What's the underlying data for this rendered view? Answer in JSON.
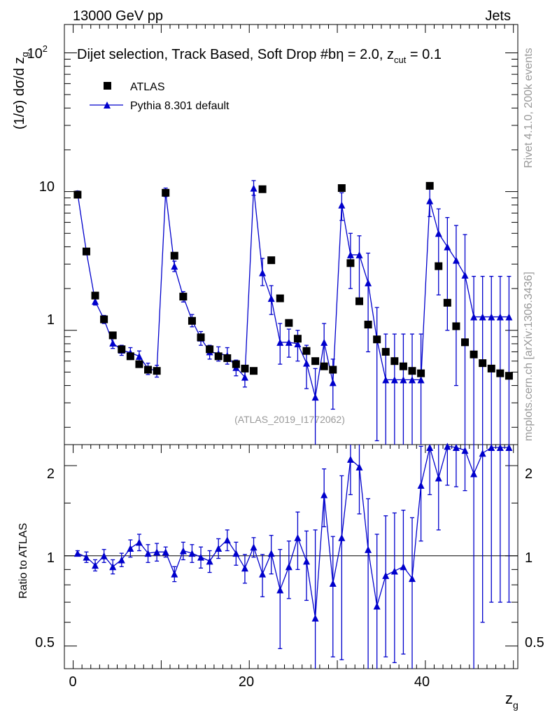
{
  "header": {
    "energy_label": "13000 GeV pp",
    "category_label": "Jets",
    "rivet_label": "Rivet 4.1.0,  200k events",
    "mcplots_label": "mcplots.cern.ch [arXiv:1306.3436]",
    "analysis_id": "(ATLAS_2019_I1772062)"
  },
  "main_plot": {
    "title_part1": "Dijet selection, Track Based, Soft Drop #b",
    "title_part2": "η = 2.0, z",
    "title_sub": "cut",
    "title_part3": " = 0.1",
    "ylabel_part1": "(1/σ) dσ/d z",
    "ylabel_sub": "g",
    "y_tick_labels": [
      "1",
      "10",
      "10"
    ],
    "y_tick_exponent": "2"
  },
  "ratio_plot": {
    "ylabel": "Ratio to ATLAS",
    "y_tick_labels": [
      "0.5",
      "1",
      "2"
    ]
  },
  "x_axis": {
    "label_main": "z",
    "label_sub": "g",
    "tick_labels": [
      "0",
      "20",
      "40"
    ]
  },
  "legend": {
    "items": [
      {
        "label": "ATLAS",
        "marker": "square",
        "color": "#000000"
      },
      {
        "label": "Pythia 8.301 default",
        "marker": "triangle",
        "color": "#0000cc"
      }
    ]
  },
  "colors": {
    "data": "#000000",
    "mc": "#0000cc"
  },
  "chart_data": {
    "type": "scatter",
    "x_range": [
      -1,
      50.5
    ],
    "main_ylim": [
      0.15,
      160
    ],
    "main_yscale": "log",
    "ratio_ylim": [
      0.42,
      2.35
    ],
    "ratio_yscale": "log",
    "x": [
      0.5,
      1.5,
      2.5,
      3.5,
      4.5,
      5.5,
      6.5,
      7.5,
      8.5,
      9.5,
      10.5,
      11.5,
      12.5,
      13.5,
      14.5,
      15.5,
      16.5,
      17.5,
      18.5,
      19.5,
      20.5,
      21.5,
      22.5,
      23.5,
      24.5,
      25.5,
      26.5,
      27.5,
      28.5,
      29.5,
      30.5,
      31.5,
      32.5,
      33.5,
      34.5,
      35.5,
      36.5,
      37.5,
      38.5,
      39.5,
      40.5,
      41.5,
      42.5,
      43.5,
      44.5,
      45.5,
      46.5,
      47.5,
      48.5,
      49.5
    ],
    "series": [
      {
        "name": "ATLAS",
        "values": [
          9.5,
          3.7,
          1.78,
          1.2,
          0.92,
          0.73,
          0.65,
          0.57,
          0.52,
          0.51,
          9.8,
          3.45,
          1.75,
          1.17,
          0.89,
          0.73,
          0.65,
          0.63,
          0.57,
          0.53,
          0.51,
          10.4,
          3.2,
          1.7,
          1.13,
          0.87,
          0.71,
          0.6,
          0.55,
          0.52,
          10.6,
          3.05,
          1.62,
          1.1,
          0.86,
          0.7,
          0.6,
          0.55,
          0.51,
          0.49,
          11.0,
          2.9,
          1.58,
          1.07,
          0.82,
          0.67,
          0.58,
          0.53,
          0.49,
          0.47
        ],
        "errors": [
          0,
          0,
          0,
          0,
          0,
          0,
          0,
          0,
          0,
          0,
          0,
          0,
          0,
          0,
          0,
          0,
          0,
          0,
          0,
          0,
          0,
          0,
          0,
          0,
          0,
          0,
          0,
          0,
          0,
          0,
          0,
          0,
          0,
          0,
          0,
          0,
          0,
          0,
          0,
          0,
          0,
          0,
          0,
          0,
          0,
          0,
          0,
          0,
          0,
          0
        ]
      },
      {
        "name": "Pythia 8.301 default",
        "values": [
          9.7,
          3.68,
          1.62,
          1.2,
          0.81,
          0.72,
          0.69,
          0.65,
          0.53,
          0.51,
          9.9,
          2.9,
          1.75,
          1.18,
          0.88,
          0.7,
          0.68,
          0.66,
          0.54,
          0.46,
          10.6,
          2.6,
          1.7,
          0.82,
          0.82,
          0.8,
          0.58,
          0.33,
          0.82,
          0.42,
          8.0,
          3.5,
          3.5,
          2.2,
          0.86,
          0.44,
          0.44,
          0.44,
          0.44,
          0.44,
          8.6,
          5.0,
          4.0,
          3.2,
          2.5,
          1.25,
          1.25,
          1.25,
          1.25,
          1.25
        ],
        "err_lo": [
          0.4,
          0.15,
          0.1,
          0.08,
          0.07,
          0.06,
          0.06,
          0.06,
          0.05,
          0.05,
          0.7,
          0.25,
          0.15,
          0.12,
          0.1,
          0.08,
          0.08,
          0.09,
          0.07,
          0.07,
          1.2,
          0.5,
          0.4,
          0.25,
          0.18,
          0.2,
          0.2,
          0.2,
          0.25,
          0.15,
          1.8,
          1.5,
          1.9,
          1.5,
          0.7,
          0.44,
          0.44,
          0.44,
          0.44,
          0.44,
          2.0,
          3.2,
          3.0,
          2.8,
          2.5,
          1.25,
          1.25,
          1.25,
          1.25,
          1.25
        ],
        "err_hi": [
          0.4,
          0.15,
          0.1,
          0.08,
          0.07,
          0.06,
          0.06,
          0.06,
          0.05,
          0.05,
          0.7,
          0.25,
          0.15,
          0.12,
          0.1,
          0.08,
          0.08,
          0.09,
          0.07,
          0.07,
          1.4,
          0.7,
          0.4,
          0.3,
          0.2,
          0.2,
          0.2,
          0.2,
          0.3,
          0.2,
          1.8,
          1.5,
          1.3,
          1.4,
          0.6,
          0.5,
          0.5,
          0.5,
          0.5,
          0.5,
          3.0,
          2.5,
          2.5,
          2.5,
          2.4,
          1.2,
          1.2,
          1.2,
          1.2,
          1.2
        ]
      }
    ],
    "ratio": {
      "name": "Pythia 8.301 default / ATLAS",
      "reference_line": 1,
      "values": [
        1.02,
        0.99,
        0.93,
        1.0,
        0.92,
        0.97,
        1.06,
        1.11,
        1.02,
        1.03,
        1.03,
        0.87,
        1.04,
        1.02,
        0.99,
        0.96,
        1.06,
        1.13,
        1.02,
        0.91,
        1.07,
        0.87,
        1.02,
        0.77,
        0.92,
        1.15,
        0.96,
        0.62,
        1.6,
        0.81,
        1.15,
        2.1,
        1.98,
        1.05,
        0.68,
        0.86,
        0.89,
        0.92,
        0.84,
        1.72,
        2.3,
        1.82,
        2.32,
        2.3,
        2.25,
        1.88,
        2.2,
        2.3,
        2.3,
        2.3
      ],
      "err_lo": [
        0.02,
        0.04,
        0.04,
        0.05,
        0.05,
        0.05,
        0.07,
        0.07,
        0.07,
        0.07,
        0.04,
        0.05,
        0.07,
        0.07,
        0.08,
        0.08,
        0.08,
        0.09,
        0.09,
        0.1,
        0.08,
        0.14,
        0.15,
        0.28,
        0.2,
        0.25,
        0.25,
        0.6,
        0.35,
        0.35,
        0.7,
        0.5,
        0.6,
        0.65,
        0.8,
        0.4,
        0.45,
        0.45,
        0.45,
        0.6,
        0.7,
        0.6,
        0.6,
        0.6,
        0.6,
        1.6,
        1.6,
        1.6,
        1.6,
        1.6
      ],
      "err_hi": [
        0.02,
        0.04,
        0.04,
        0.05,
        0.05,
        0.05,
        0.07,
        0.07,
        0.07,
        0.07,
        0.04,
        0.05,
        0.07,
        0.07,
        0.08,
        0.08,
        0.08,
        0.09,
        0.09,
        0.1,
        0.08,
        0.14,
        0.15,
        0.28,
        0.2,
        0.25,
        0.25,
        0.6,
        0.35,
        0.35,
        0.7,
        0.5,
        0.5,
        0.5,
        0.5,
        0.5,
        0.5,
        0.5,
        0.5,
        0.6,
        0.7,
        0.6,
        0.6,
        0.6,
        0.6,
        1.2,
        1.2,
        1.2,
        1.2,
        1.2
      ]
    }
  }
}
